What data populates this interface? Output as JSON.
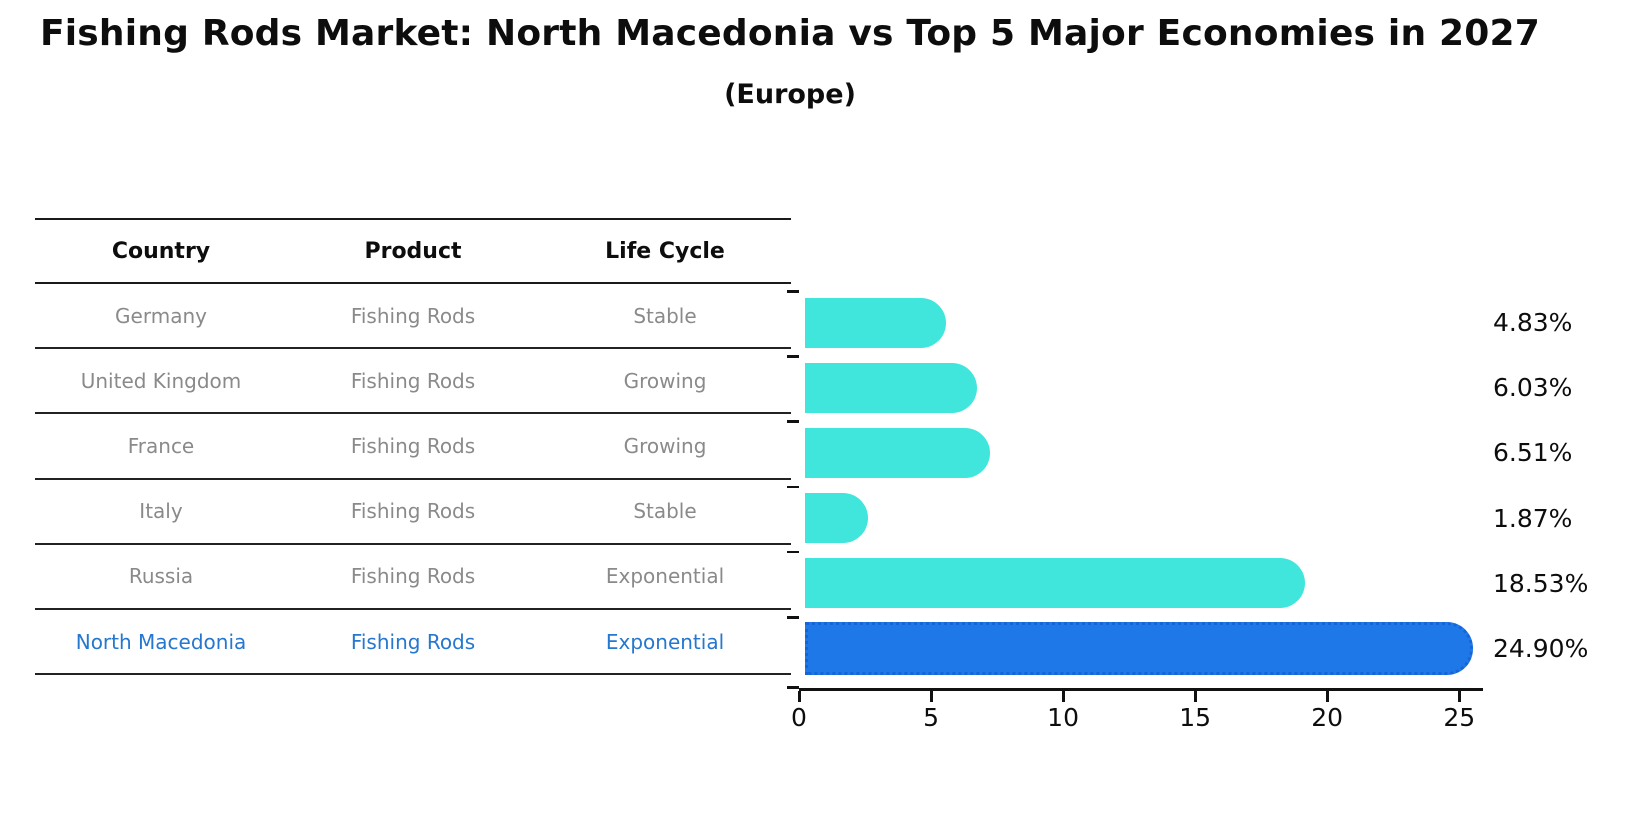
{
  "title": "Fishing Rods Market: North Macedonia vs Top 5 Major Economies in 2027",
  "subtitle": "(Europe)",
  "table": {
    "headers": [
      "Country",
      "Product",
      "Life Cycle"
    ],
    "rows": [
      {
        "country": "Germany",
        "product": "Fishing Rods",
        "life_cycle": "Stable"
      },
      {
        "country": "United Kingdom",
        "product": "Fishing Rods",
        "life_cycle": "Growing"
      },
      {
        "country": "France",
        "product": "Fishing Rods",
        "life_cycle": "Growing"
      },
      {
        "country": "Italy",
        "product": "Fishing Rods",
        "life_cycle": "Stable"
      },
      {
        "country": "Russia",
        "product": "Fishing Rods",
        "life_cycle": "Exponential"
      },
      {
        "country": "North Macedonia",
        "product": "Fishing Rods",
        "life_cycle": "Exponential"
      }
    ],
    "highlight_row_index": 5
  },
  "chart_data": {
    "type": "bar",
    "orientation": "horizontal",
    "title": "Fishing Rods Market: North Macedonia vs Top 5 Major Economies in 2027 (Europe)",
    "categories": [
      "Germany",
      "United Kingdom",
      "France",
      "Italy",
      "Russia",
      "North Macedonia"
    ],
    "values": [
      4.83,
      6.03,
      6.51,
      1.87,
      18.53,
      24.9
    ],
    "value_labels": [
      "4.83%",
      "6.03%",
      "6.51%",
      "1.87%",
      "18.53%",
      "24.90%"
    ],
    "x_ticks": [
      0,
      5,
      10,
      15,
      20,
      25
    ],
    "xlim": [
      0,
      25.9
    ],
    "xlabel": "",
    "ylabel": "",
    "grid": false,
    "legend": "none",
    "highlight_index": 5,
    "colors": {
      "bar": "#40e5dc",
      "highlight_bar": "#1e78e8",
      "highlight_bar_edge": "#1565d8",
      "highlight_text": "#2577cf",
      "cell_text": "#8a8a8a",
      "axis": "#111111"
    }
  }
}
